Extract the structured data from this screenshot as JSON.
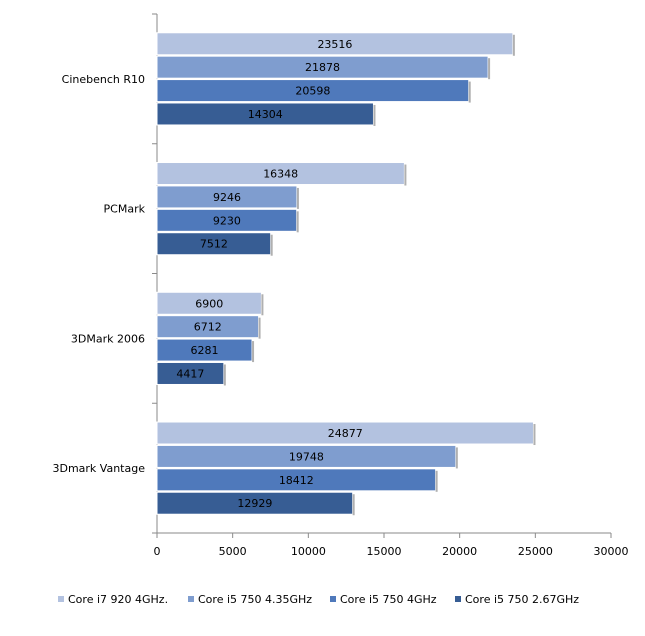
{
  "chart_data": {
    "type": "bar",
    "orientation": "horizontal",
    "categories": [
      "Cinebench R10",
      "PCMark",
      "3DMark 2006",
      "3Dmark Vantage"
    ],
    "series": [
      {
        "name": "Core i7 920 4GHz.",
        "values": [
          23516,
          16348,
          6900,
          24877
        ],
        "color": "#b3c2e0"
      },
      {
        "name": "Core i5 750 4.35GHz",
        "values": [
          21878,
          9246,
          6712,
          19748
        ],
        "color": "#7f9dcf"
      },
      {
        "name": "Core i5 750 4GHz",
        "values": [
          20598,
          9230,
          6281,
          18412
        ],
        "color": "#4f79bb"
      },
      {
        "name": "Core i5 750 2.67GHz",
        "values": [
          14304,
          7512,
          4417,
          12929
        ],
        "color": "#375d94"
      }
    ],
    "xlim": [
      0,
      30000
    ],
    "xticks": [
      "0",
      "5000",
      "10000",
      "15000",
      "20000",
      "25000",
      "30000"
    ],
    "xtick_values": [
      0,
      5000,
      10000,
      15000,
      20000,
      25000,
      30000
    ],
    "grid": false,
    "legend": "bottom",
    "title": "",
    "xlabel": "",
    "ylabel": ""
  }
}
